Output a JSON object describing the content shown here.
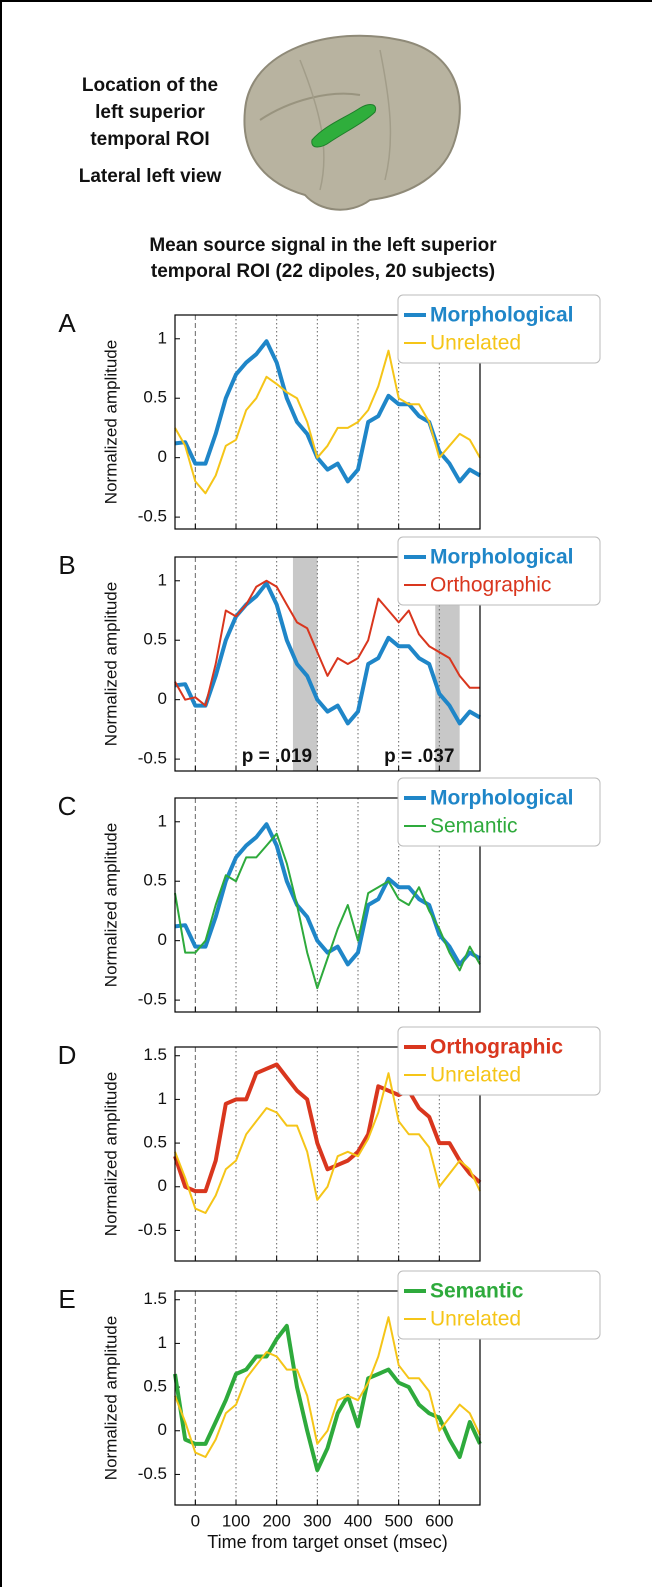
{
  "header": {
    "roi_label": [
      "Location of the",
      "left superior",
      "temporal ROI"
    ],
    "view_label": "Lateral left view",
    "title": [
      "Mean source signal in the left superior",
      "temporal ROI (22 dipoles, 20 subjects)"
    ]
  },
  "chart_data": [
    {
      "type": "line",
      "panel": "A",
      "ylabel": "Normalized amplitude",
      "xlim": [
        -50,
        700
      ],
      "ylim": [
        -0.6,
        1.2
      ],
      "yticks": [
        -0.5,
        0,
        0.5,
        1
      ],
      "xticks": [
        0,
        100,
        200,
        300,
        400,
        500,
        600
      ],
      "legend_loc": "upper right",
      "x": [
        -50,
        -25,
        0,
        25,
        50,
        75,
        100,
        125,
        150,
        175,
        200,
        225,
        250,
        275,
        300,
        325,
        350,
        375,
        400,
        425,
        450,
        475,
        500,
        525,
        550,
        575,
        600,
        625,
        650,
        675,
        700
      ],
      "series": [
        {
          "name": "Morphological",
          "color": "#1f86c8",
          "linewidth": 4,
          "values": [
            0.12,
            0.13,
            -0.05,
            -0.05,
            0.2,
            0.5,
            0.7,
            0.8,
            0.87,
            0.98,
            0.8,
            0.5,
            0.3,
            0.2,
            0.0,
            -0.1,
            -0.05,
            -0.2,
            -0.1,
            0.3,
            0.35,
            0.52,
            0.45,
            0.45,
            0.35,
            0.3,
            0.05,
            -0.05,
            -0.2,
            -0.1,
            -0.15
          ]
        },
        {
          "name": "Unrelated",
          "color": "#f5c518",
          "linewidth": 2,
          "values": [
            0.25,
            0.1,
            -0.2,
            -0.3,
            -0.15,
            0.1,
            0.15,
            0.4,
            0.5,
            0.68,
            0.62,
            0.55,
            0.5,
            0.3,
            0.0,
            0.1,
            0.25,
            0.25,
            0.3,
            0.4,
            0.6,
            0.9,
            0.5,
            0.45,
            0.45,
            0.3,
            0.0,
            0.1,
            0.2,
            0.15,
            0.0
          ]
        }
      ]
    },
    {
      "type": "line",
      "panel": "B",
      "ylabel": "Normalized amplitude",
      "xlim": [
        -50,
        700
      ],
      "ylim": [
        -0.6,
        1.2
      ],
      "yticks": [
        -0.5,
        0,
        0.5,
        1
      ],
      "xticks": [
        0,
        100,
        200,
        300,
        400,
        500,
        600
      ],
      "legend_loc": "upper right",
      "x": [
        -50,
        -25,
        0,
        25,
        50,
        75,
        100,
        125,
        150,
        175,
        200,
        225,
        250,
        275,
        300,
        325,
        350,
        375,
        400,
        425,
        450,
        475,
        500,
        525,
        550,
        575,
        600,
        625,
        650,
        675,
        700
      ],
      "shaded_regions": [
        [
          240,
          300
        ],
        [
          590,
          650
        ]
      ],
      "annotations": [
        "p = .019",
        "p = .037"
      ],
      "series": [
        {
          "name": "Morphological",
          "color": "#1f86c8",
          "linewidth": 4,
          "values": [
            0.12,
            0.13,
            -0.05,
            -0.05,
            0.2,
            0.5,
            0.7,
            0.8,
            0.87,
            0.98,
            0.8,
            0.5,
            0.3,
            0.2,
            0.0,
            -0.1,
            -0.05,
            -0.2,
            -0.1,
            0.3,
            0.35,
            0.52,
            0.45,
            0.45,
            0.35,
            0.3,
            0.05,
            -0.05,
            -0.2,
            -0.1,
            -0.15
          ]
        },
        {
          "name": "Orthographic",
          "color": "#d9361e",
          "linewidth": 2,
          "values": [
            0.15,
            0.0,
            0.02,
            -0.05,
            0.3,
            0.75,
            0.7,
            0.8,
            0.95,
            1.0,
            0.95,
            0.8,
            0.65,
            0.6,
            0.4,
            0.2,
            0.35,
            0.3,
            0.35,
            0.5,
            0.85,
            0.75,
            0.65,
            0.75,
            0.55,
            0.45,
            0.4,
            0.35,
            0.2,
            0.1,
            0.1
          ]
        }
      ]
    },
    {
      "type": "line",
      "panel": "C",
      "ylabel": "Normalized amplitude",
      "xlim": [
        -50,
        700
      ],
      "ylim": [
        -0.6,
        1.2
      ],
      "yticks": [
        -0.5,
        0,
        0.5,
        1
      ],
      "xticks": [
        0,
        100,
        200,
        300,
        400,
        500,
        600
      ],
      "legend_loc": "upper right",
      "x": [
        -50,
        -25,
        0,
        25,
        50,
        75,
        100,
        125,
        150,
        175,
        200,
        225,
        250,
        275,
        300,
        325,
        350,
        375,
        400,
        425,
        450,
        475,
        500,
        525,
        550,
        575,
        600,
        625,
        650,
        675,
        700
      ],
      "series": [
        {
          "name": "Morphological",
          "color": "#1f86c8",
          "linewidth": 4,
          "values": [
            0.12,
            0.13,
            -0.05,
            -0.05,
            0.2,
            0.5,
            0.7,
            0.8,
            0.87,
            0.98,
            0.8,
            0.5,
            0.3,
            0.2,
            0.0,
            -0.1,
            -0.05,
            -0.2,
            -0.1,
            0.3,
            0.35,
            0.52,
            0.45,
            0.45,
            0.35,
            0.3,
            0.05,
            -0.05,
            -0.2,
            -0.1,
            -0.15
          ]
        },
        {
          "name": "Semantic",
          "color": "#2eaa3c",
          "linewidth": 2,
          "values": [
            0.4,
            -0.1,
            -0.1,
            0.0,
            0.3,
            0.55,
            0.5,
            0.7,
            0.7,
            0.8,
            0.9,
            0.65,
            0.3,
            -0.1,
            -0.4,
            -0.15,
            0.1,
            0.3,
            0.0,
            0.4,
            0.45,
            0.5,
            0.35,
            0.3,
            0.45,
            0.25,
            0.1,
            -0.1,
            -0.25,
            -0.05,
            -0.2
          ]
        }
      ]
    },
    {
      "type": "line",
      "panel": "D",
      "ylabel": "Normalized amplitude",
      "xlim": [
        -50,
        700
      ],
      "ylim": [
        -0.85,
        1.6
      ],
      "yticks": [
        -0.5,
        0,
        0.5,
        1,
        1.5
      ],
      "xticks": [
        0,
        100,
        200,
        300,
        400,
        500,
        600
      ],
      "legend_loc": "upper right",
      "x": [
        -50,
        -25,
        0,
        25,
        50,
        75,
        100,
        125,
        150,
        175,
        200,
        225,
        250,
        275,
        300,
        325,
        350,
        375,
        400,
        425,
        450,
        475,
        500,
        525,
        550,
        575,
        600,
        625,
        650,
        675,
        700
      ],
      "series": [
        {
          "name": "Orthographic",
          "color": "#d9361e",
          "linewidth": 4,
          "values": [
            0.35,
            0.0,
            -0.05,
            -0.05,
            0.3,
            0.95,
            1.0,
            1.0,
            1.3,
            1.35,
            1.4,
            1.25,
            1.1,
            1.0,
            0.5,
            0.2,
            0.25,
            0.3,
            0.4,
            0.6,
            1.15,
            1.1,
            1.05,
            1.1,
            0.9,
            0.8,
            0.5,
            0.5,
            0.3,
            0.15,
            0.05
          ]
        },
        {
          "name": "Unrelated",
          "color": "#f5c518",
          "linewidth": 2,
          "values": [
            0.4,
            0.1,
            -0.25,
            -0.3,
            -0.1,
            0.2,
            0.3,
            0.6,
            0.75,
            0.9,
            0.85,
            0.7,
            0.7,
            0.4,
            -0.15,
            0.0,
            0.35,
            0.4,
            0.35,
            0.55,
            0.85,
            1.3,
            0.75,
            0.6,
            0.6,
            0.45,
            0.0,
            0.15,
            0.3,
            0.2,
            -0.05
          ]
        }
      ]
    },
    {
      "type": "line",
      "panel": "E",
      "ylabel": "Normalized amplitude",
      "xlabel": "Time from target onset (msec)",
      "xlim": [
        -50,
        700
      ],
      "ylim": [
        -0.85,
        1.6
      ],
      "yticks": [
        -0.5,
        0,
        0.5,
        1,
        1.5
      ],
      "xticks": [
        0,
        100,
        200,
        300,
        400,
        500,
        600
      ],
      "legend_loc": "upper right",
      "x": [
        -50,
        -25,
        0,
        25,
        50,
        75,
        100,
        125,
        150,
        175,
        200,
        225,
        250,
        275,
        300,
        325,
        350,
        375,
        400,
        425,
        450,
        475,
        500,
        525,
        550,
        575,
        600,
        625,
        650,
        675,
        700
      ],
      "series": [
        {
          "name": "Semantic",
          "color": "#2eaa3c",
          "linewidth": 4,
          "values": [
            0.65,
            -0.1,
            -0.15,
            -0.15,
            0.1,
            0.35,
            0.65,
            0.7,
            0.85,
            0.85,
            1.05,
            1.2,
            0.5,
            0.0,
            -0.45,
            -0.2,
            0.2,
            0.4,
            0.05,
            0.6,
            0.65,
            0.7,
            0.55,
            0.5,
            0.3,
            0.2,
            0.15,
            -0.1,
            -0.3,
            0.1,
            -0.15
          ]
        },
        {
          "name": "Unrelated",
          "color": "#f5c518",
          "linewidth": 2,
          "values": [
            0.4,
            0.1,
            -0.25,
            -0.3,
            -0.1,
            0.2,
            0.3,
            0.6,
            0.75,
            0.9,
            0.85,
            0.7,
            0.7,
            0.4,
            -0.15,
            0.0,
            0.35,
            0.4,
            0.35,
            0.55,
            0.85,
            1.3,
            0.75,
            0.6,
            0.6,
            0.45,
            0.0,
            0.15,
            0.3,
            0.2,
            -0.05
          ]
        }
      ]
    }
  ]
}
